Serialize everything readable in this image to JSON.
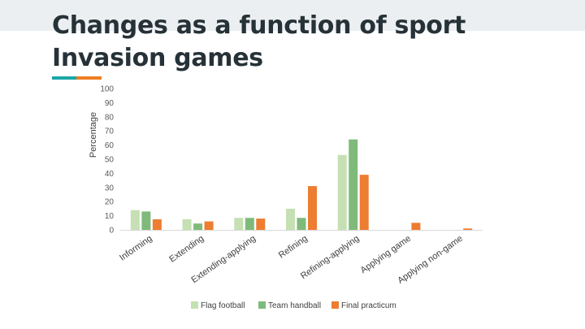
{
  "slide": {
    "title_line1": "Changes as a function of sport",
    "title_line2": "Invasion games",
    "accent_colors": [
      "#1aa6a6",
      "#ef7d22"
    ]
  },
  "chart_data": {
    "type": "bar",
    "title": "",
    "xlabel": "",
    "ylabel": "Percentage",
    "ylim": [
      0,
      100
    ],
    "yticks": [
      0,
      10,
      20,
      30,
      40,
      50,
      60,
      70,
      80,
      90,
      100
    ],
    "grid": false,
    "legend_position": "bottom",
    "categories": [
      "Informing",
      "Extending",
      "Extending-applying",
      "Refining",
      "Refining-applying",
      "Applying game",
      "Applying non-game"
    ],
    "series": [
      {
        "name": "Flag football",
        "color": "#c5e0b3",
        "values": [
          14,
          7.5,
          8.5,
          15,
          53,
          0,
          0
        ]
      },
      {
        "name": "Team handball",
        "color": "#7fba7a",
        "values": [
          13,
          4.5,
          8.5,
          8.5,
          64,
          0,
          0
        ]
      },
      {
        "name": "Final practicum",
        "color": "#ed7d31",
        "values": [
          7.5,
          6,
          8,
          31,
          39,
          5,
          1
        ]
      }
    ]
  }
}
